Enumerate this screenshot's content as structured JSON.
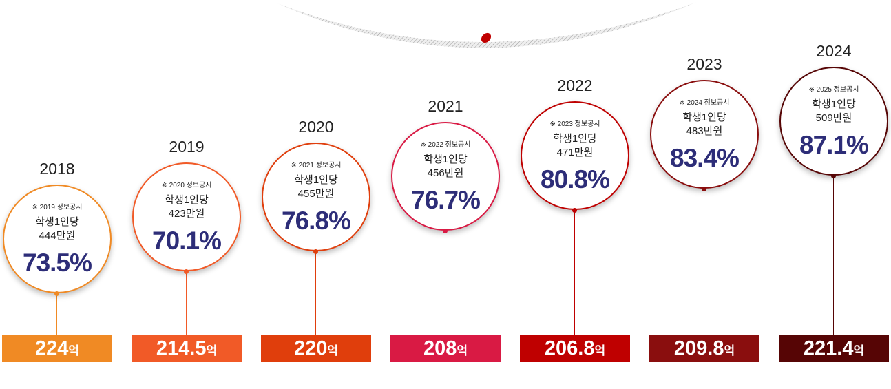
{
  "items": [
    {
      "year": "2018",
      "note": "※ 2019 정보공시",
      "per_label": "학생1인당",
      "per_amount": "444만원",
      "percent": "73.5%",
      "amount": "224",
      "unit": "억",
      "color": "#f08a24"
    },
    {
      "year": "2019",
      "note": "※ 2020 정보공시",
      "per_label": "학생1인당",
      "per_amount": "423만원",
      "percent": "70.1%",
      "amount": "214.5",
      "unit": "억",
      "color": "#f15a27"
    },
    {
      "year": "2020",
      "note": "※ 2021 정보공시",
      "per_label": "학생1인당",
      "per_amount": "455만원",
      "percent": "76.8%",
      "amount": "220",
      "unit": "억",
      "color": "#e03e0c"
    },
    {
      "year": "2021",
      "note": "※ 2022 정보공시",
      "per_label": "학생1인당",
      "per_amount": "456만원",
      "percent": "76.7%",
      "amount": "208",
      "unit": "억",
      "color": "#d91a44"
    },
    {
      "year": "2022",
      "note": "※ 2023 정보공시",
      "per_label": "학생1인당",
      "per_amount": "471만원",
      "percent": "80.8%",
      "amount": "206.8",
      "unit": "억",
      "color": "#bf0000"
    },
    {
      "year": "2023",
      "note": "※ 2024 정보공시",
      "per_label": "학생1인당",
      "per_amount": "483만원",
      "percent": "83.4%",
      "amount": "209.8",
      "unit": "억",
      "color": "#8a0e0e"
    },
    {
      "year": "2024",
      "note": "※ 2025 정보공시",
      "per_label": "학생1인당",
      "per_amount": "509만원",
      "percent": "87.1%",
      "amount": "221.4",
      "unit": "억",
      "color": "#560505"
    }
  ]
}
